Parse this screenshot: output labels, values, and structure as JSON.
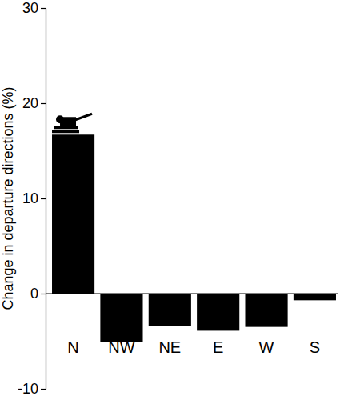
{
  "chart_data": {
    "type": "bar",
    "y_label": "Change in departure directions (%)",
    "categories": [
      "N",
      "NW",
      "NE",
      "E",
      "W",
      "S"
    ],
    "values": [
      16.7,
      -5.1,
      -3.4,
      -3.9,
      -3.5,
      -0.7
    ],
    "color": "#000000",
    "ylim": [
      -10,
      30
    ],
    "yticks": [
      -10,
      0,
      10,
      20,
      30
    ],
    "grid": false
  }
}
